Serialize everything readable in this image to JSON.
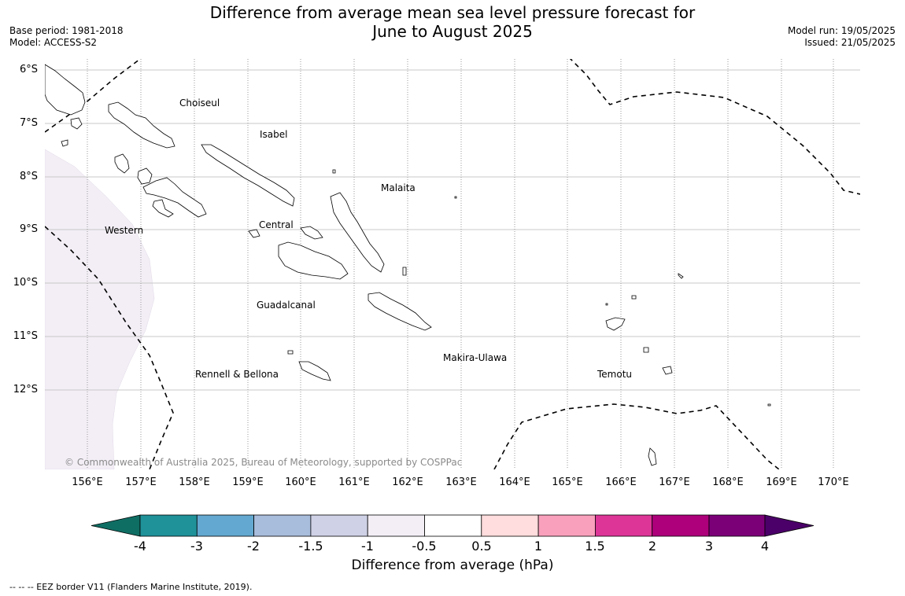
{
  "title_line1": "Difference from average mean sea level pressure forecast for",
  "title_line2": "June to August 2025",
  "meta_left": {
    "base_period": "Base period: 1981-2018",
    "model": "Model: ACCESS-S2"
  },
  "meta_right": {
    "model_run": "Model run: 19/05/2025",
    "issued": "Issued: 21/05/2025"
  },
  "lat_labels": [
    "6°S",
    "7°S",
    "8°S",
    "9°S",
    "10°S",
    "11°S",
    "12°S"
  ],
  "lon_labels": [
    "156°E",
    "157°E",
    "158°E",
    "159°E",
    "160°E",
    "161°E",
    "162°E",
    "163°E",
    "164°E",
    "165°E",
    "166°E",
    "167°E",
    "168°E",
    "169°E",
    "170°E"
  ],
  "regions": {
    "choiseul": "Choiseul",
    "isabel": "Isabel",
    "malaita": "Malaita",
    "western": "Western",
    "central": "Central",
    "guadalcanal": "Guadalcanal",
    "makira": "Makira-Ulawa",
    "rennell": "Rennell & Bellona",
    "temotu": "Temotu"
  },
  "copyright": "© Commonwealth of Australia 2025, Bureau of Meteorology, supported by COSPPac",
  "colorbar": {
    "colors": [
      "#0f6e64",
      "#1f9198",
      "#63a8d0",
      "#a8bcdb",
      "#cfd1e6",
      "#f3eef6",
      "#ffffff",
      "#ffdcdd",
      "#f9a0bc",
      "#dc3597",
      "#ad007a",
      "#7b0078",
      "#4a0068"
    ],
    "labels": [
      "-4",
      "-3",
      "-2",
      "-1.5",
      "-1",
      "-0.5",
      "0.5",
      "1",
      "1.5",
      "2",
      "3",
      "4"
    ],
    "title": "Difference from average (hPa)"
  },
  "anomaly_shading_color": "#f3eef6",
  "footnote": "--  --  -- EEZ border V11 (Flanders Marine Institute, 2019)."
}
